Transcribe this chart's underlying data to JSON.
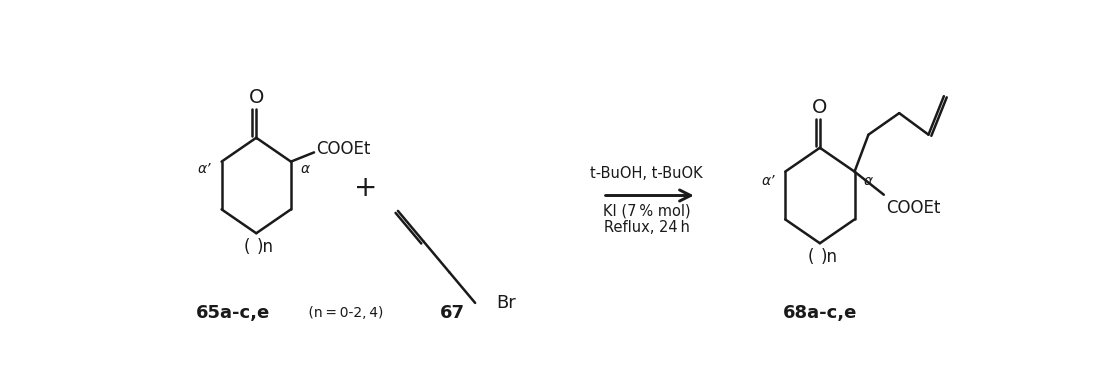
{
  "bg_color": "#ffffff",
  "line_color": "#1a1a1a",
  "line_width": 1.8,
  "fig_width": 11.16,
  "fig_height": 3.78,
  "label_65": "65a-c,e",
  "label_65_sub": " (n = 0-2, 4)",
  "label_67": "67",
  "label_68": "68a-c,e",
  "condition_line1": "t-BuOH, t-BuOK",
  "condition_line2": "KI (7 % mol)",
  "condition_line3": "Reflux, 24 h",
  "plus_sign": "+",
  "br_label": "Br",
  "o_label": "O",
  "cooet_label": "COOEt",
  "cooet_label2": "COOEt",
  "alpha_label": "α",
  "alpha_prime_label": "α’",
  "alpha_label2": "α",
  "alpha_prime_label2": "α’",
  "n_label_open": "(",
  "n_label_close": ")n"
}
